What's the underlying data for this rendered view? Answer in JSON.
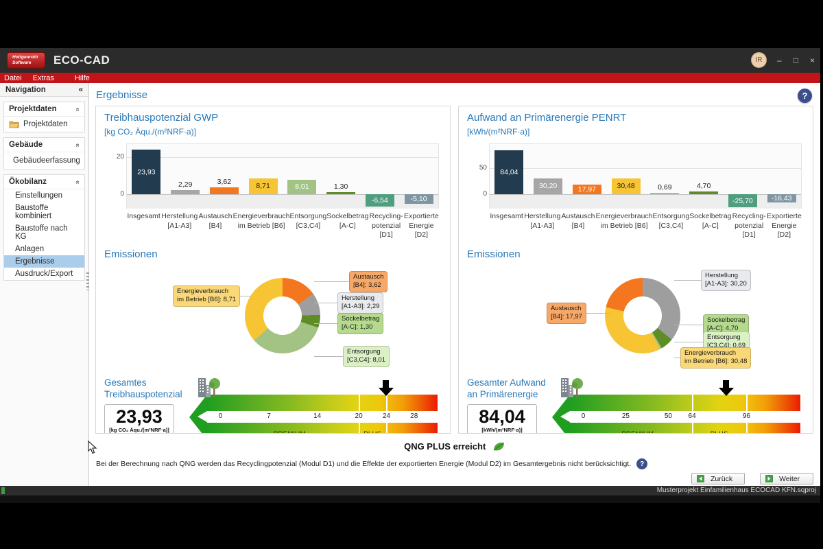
{
  "window": {
    "logo_line1": "Hottgenroth",
    "logo_line2": "Software",
    "title": "ECO-CAD",
    "avatar": "IR",
    "controls": {
      "minimize": "–",
      "maximize": "□",
      "close": "×"
    }
  },
  "menubar": {
    "items": [
      "Datei",
      "Extras",
      "Hilfe"
    ]
  },
  "sidebar": {
    "header": "Navigation",
    "collapse_icon": "«",
    "group_collapse_icon": "«",
    "groups": [
      {
        "title": "Projektdaten",
        "items": [
          {
            "label": "Projektdaten"
          }
        ]
      },
      {
        "title": "Gebäude",
        "items": [
          {
            "label": "Gebäudeerfassung"
          }
        ]
      },
      {
        "title": "Ökobilanz",
        "items": [
          {
            "label": "Einstellungen"
          },
          {
            "label": "Baustoffe kombiniert"
          },
          {
            "label": "Baustoffe nach KG"
          },
          {
            "label": "Anlagen"
          },
          {
            "label": "Ergebnisse",
            "selected": true
          },
          {
            "label": "Ausdruck/Export"
          }
        ]
      }
    ]
  },
  "page": {
    "title": "Ergebnisse",
    "help_glyph": "?"
  },
  "panels": [
    {
      "id": "gwp",
      "chart_title": "Treibhauspotenzial GWP",
      "chart_unit": "[kg CO₂ Äqu./(m²NRF·a)]",
      "emissions_title": "Emissionen",
      "total_title_line1": "Gesamtes",
      "total_title_line2": "Treibhauspotenzial",
      "total_value": "23,93",
      "total_unit": "[kg CO₂ Äqu./(m²NRF·a)]"
    },
    {
      "id": "penrt",
      "chart_title": "Aufwand an Primärenergie PENRT",
      "chart_unit": "[kWh/(m²NRF·a)]",
      "emissions_title": "Emissionen",
      "total_title_line1": "Gesamter Aufwand",
      "total_title_line2": "an Primärenergie",
      "total_value": "84,04",
      "total_unit": "[kWh/(m²NRF·a)]"
    }
  ],
  "chart_data": [
    {
      "type": "bar",
      "panel": "gwp",
      "title": "Treibhauspotenzial GWP",
      "ylabel": "[kg CO₂ Äqu./(m²NRF·a)]",
      "ylim": [
        -8,
        27
      ],
      "yticks": [
        0,
        20
      ],
      "categories": [
        [
          "Insgesamt"
        ],
        [
          "Herstellung",
          "[A1-A3]"
        ],
        [
          "Austausch",
          "[B4]"
        ],
        [
          "Energieverbrauch",
          "im Betrieb [B6]"
        ],
        [
          "Entsorgung",
          "[C3,C4]"
        ],
        [
          "Sockelbetrag",
          "[A-C]"
        ],
        [
          "Recycling-",
          "potenzial [D1]"
        ],
        [
          "Exportierte",
          "Energie [D2]"
        ]
      ],
      "values": [
        23.93,
        2.29,
        3.62,
        8.71,
        8.01,
        1.3,
        -6.54,
        -5.1
      ],
      "displays": [
        "23,93",
        "2,29",
        "3,62",
        "8,71",
        "8,01",
        "1,30",
        "-6,54",
        "-5,10"
      ],
      "colors": [
        "#223b4e",
        "#a6a6a6",
        "#f4771f",
        "#f7c434",
        "#a2c383",
        "#5e8d26",
        "#4f9e80",
        "#7f96a2"
      ],
      "label_inside": [
        true,
        false,
        false,
        true,
        true,
        false,
        true,
        true
      ],
      "label_colors": [
        "#ffffff",
        "#222222",
        "#222222",
        "#222222",
        "#ffffff",
        "#222222",
        "#ffffff",
        "#ffffff"
      ]
    },
    {
      "type": "bar",
      "panel": "penrt",
      "title": "Aufwand an Primärenergie PENRT",
      "ylabel": "[kWh/(m²NRF·a)]",
      "ylim": [
        -29,
        96
      ],
      "yticks": [
        0,
        50
      ],
      "categories": [
        [
          "Insgesamt"
        ],
        [
          "Herstellung",
          "[A1-A3]"
        ],
        [
          "Austausch",
          "[B4]"
        ],
        [
          "Energieverbrauch",
          "im Betrieb [B6]"
        ],
        [
          "Entsorgung",
          "[C3,C4]"
        ],
        [
          "Sockelbetrag",
          "[A-C]"
        ],
        [
          "Recycling-",
          "potenzial [D1]"
        ],
        [
          "Exportierte",
          "Energie [D2]"
        ]
      ],
      "values": [
        84.04,
        30.2,
        17.97,
        30.48,
        0.69,
        4.7,
        -25.7,
        -16.43
      ],
      "displays": [
        "84,04",
        "30,20",
        "17,97",
        "30,48",
        "0,69",
        "4,70",
        "-25,70",
        "-16,43"
      ],
      "colors": [
        "#223b4e",
        "#a6a6a6",
        "#f4771f",
        "#f7c434",
        "#a2c383",
        "#5e8d26",
        "#4f9e80",
        "#7f96a2"
      ],
      "label_inside": [
        true,
        true,
        true,
        true,
        false,
        false,
        true,
        true
      ],
      "label_colors": [
        "#ffffff",
        "#ffffff",
        "#ffffff",
        "#222222",
        "#222222",
        "#222222",
        "#ffffff",
        "#ffffff"
      ]
    },
    {
      "type": "donut",
      "panel": "gwp",
      "title": "Emissionen",
      "segments": [
        {
          "name": "Austausch",
          "detail": "[B4]: 3,62",
          "value": 3.62,
          "color": "#f4771f",
          "box": "#f7a866"
        },
        {
          "name": "Herstellung",
          "detail": "[A1-A3]: 2,29",
          "value": 2.29,
          "color": "#9e9e9e",
          "box": "#e9eaee"
        },
        {
          "name": "Sockelbetrag",
          "detail": "[A-C]: 1,30",
          "value": 1.3,
          "color": "#5e8d26",
          "box": "#b5da8d"
        },
        {
          "name": "Entsorgung",
          "detail": "[C3,C4]: 8,01",
          "value": 8.01,
          "color": "#a2c383",
          "box": "#dbf0c5"
        },
        {
          "name": "Energieverbrauch",
          "detail": "im Betrieb [B6]: 8,71",
          "value": 8.71,
          "color": "#f7c434",
          "box": "#fad877"
        }
      ]
    },
    {
      "type": "donut",
      "panel": "penrt",
      "title": "Emissionen",
      "segments": [
        {
          "name": "Herstellung",
          "detail": "[A1-A3]: 30,20",
          "value": 30.2,
          "color": "#9e9e9e",
          "box": "#e9eaee"
        },
        {
          "name": "Sockelbetrag",
          "detail": "[A-C]: 4,70",
          "value": 4.7,
          "color": "#5e8d26",
          "box": "#b5da8d"
        },
        {
          "name": "Entsorgung",
          "detail": "[C3,C4]: 0,69",
          "value": 0.69,
          "color": "#a2c383",
          "box": "#dbf0c5"
        },
        {
          "name": "Energieverbrauch",
          "detail": "im Betrieb [B6]: 30,48",
          "value": 30.48,
          "color": "#f7c434",
          "box": "#fad877"
        },
        {
          "name": "Austausch",
          "detail": "[B4]: 17,97",
          "value": 17.97,
          "color": "#f4771f",
          "box": "#f7a866"
        }
      ]
    },
    {
      "type": "scale",
      "panel": "gwp",
      "value": 23.93,
      "ticks": [
        0,
        7,
        14,
        20,
        24,
        28
      ],
      "v_end": 28,
      "p0": 5.8,
      "p_end": 89.8,
      "zones": [
        {
          "label": "PREMIUM",
          "to": 20
        },
        {
          "label": "PLUS",
          "to": 24
        }
      ]
    },
    {
      "type": "scale",
      "panel": "penrt",
      "value": 84.04,
      "ticks": [
        0,
        25,
        50,
        64,
        96
      ],
      "v_end": 96,
      "p0": 5.8,
      "p_end": 76.6,
      "zones": [
        {
          "label": "PREMIUM",
          "to": 64
        },
        {
          "label": "PLUS",
          "to": 96
        }
      ]
    }
  ],
  "footer": {
    "qng": "QNG PLUS erreicht",
    "note": "Bei der Berechnung nach QNG werden das Recyclingpotenzial (Modul D1) und die Effekte der exportierten Energie (Modul D2) im Gesamtergebnis nicht berücksichtigt.",
    "note_help_glyph": "?",
    "back": "Zurück",
    "next": "Weiter"
  },
  "statusbar": {
    "text": "Musterprojekt Einfamilienhaus ECOCAD KFN.sqproj"
  }
}
